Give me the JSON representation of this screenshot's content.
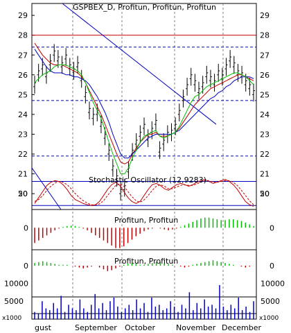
{
  "chart_data": [
    {
      "type": "line",
      "panel": "price",
      "title": "GSPBEX_D, Profitun, Profitun, Profitun",
      "ylim": [
        19.2,
        29.6
      ],
      "y_ticks": [
        "20",
        "21",
        "22",
        "23",
        "24",
        "25",
        "26",
        "27",
        "28",
        "29"
      ],
      "x_labels": [
        "gust",
        "September",
        "October",
        "November",
        "December"
      ],
      "colors": {
        "price": "#000000",
        "ma_short": "#00c000",
        "ma_long": "#0000c0",
        "ma_mid": "#c00000",
        "trend": "#0000c0",
        "level": "#c00000"
      },
      "resistance_level": 28.0,
      "dashed_levels": [
        27.4,
        24.7,
        21.9
      ],
      "series": [
        {
          "key": "close",
          "values": [
            25.5,
            26.1,
            26.4,
            26.0,
            26.6,
            27.1,
            26.8,
            26.5,
            26.9,
            26.4,
            26.2,
            26.5,
            25.8,
            25.0,
            24.2,
            23.9,
            24.1,
            23.5,
            22.9,
            22.1,
            21.3,
            20.8,
            20.1,
            20.3,
            21.2,
            22.1,
            22.6,
            23.0,
            23.4,
            22.8,
            23.2,
            23.6,
            22.2,
            22.6,
            23.0,
            23.1,
            23.4,
            24.1,
            24.8,
            25.4,
            25.9,
            25.6,
            25.2,
            25.5,
            26.0,
            25.8,
            25.6,
            26.1,
            25.9,
            26.4,
            26.8,
            26.5,
            26.1,
            26.0,
            25.6,
            25.4,
            25.1
          ]
        },
        {
          "key": "ma_short",
          "values": [
            25.6,
            25.8,
            26.0,
            26.1,
            26.2,
            26.4,
            26.5,
            26.5,
            26.5,
            26.4,
            26.3,
            26.2,
            26.0,
            25.6,
            25.1,
            24.6,
            24.2,
            23.8,
            23.2,
            22.6,
            22.0,
            21.5,
            21.0,
            21.0,
            21.3,
            21.8,
            22.2,
            22.6,
            22.9,
            23.0,
            23.1,
            23.2,
            22.9,
            22.8,
            22.9,
            23.0,
            23.1,
            23.4,
            23.8,
            24.2,
            24.6,
            24.9,
            25.0,
            25.2,
            25.4,
            25.5,
            25.6,
            25.7,
            25.8,
            25.9,
            26.0,
            26.1,
            26.1,
            26.0,
            25.9,
            25.7,
            25.5
          ]
        },
        {
          "key": "ma_long",
          "values": [
            27.3,
            27.0,
            26.7,
            26.4,
            26.2,
            26.1,
            26.1,
            26.1,
            26.0,
            26.0,
            25.9,
            25.9,
            25.8,
            25.7,
            25.5,
            25.2,
            24.9,
            24.5,
            24.1,
            23.6,
            23.0,
            22.5,
            22.0,
            21.8,
            21.8,
            22.0,
            22.2,
            22.4,
            22.6,
            22.8,
            22.9,
            23.0,
            23.0,
            23.0,
            23.0,
            23.0,
            23.1,
            23.2,
            23.4,
            23.6,
            23.8,
            24.0,
            24.2,
            24.4,
            24.6,
            24.8,
            24.9,
            25.1,
            25.2,
            25.4,
            25.5,
            25.7,
            25.8,
            25.9,
            25.9,
            25.9,
            25.8
          ]
        },
        {
          "key": "ma_mid",
          "values": [
            27.6,
            27.3,
            27.0,
            26.8,
            26.6,
            26.5,
            26.5,
            26.5,
            26.4,
            26.3,
            26.2,
            26.1,
            25.9,
            25.6,
            25.2,
            24.8,
            24.4,
            24.0,
            23.5,
            23.0,
            22.5,
            22.0,
            21.6,
            21.5,
            21.6,
            22.0,
            22.3,
            22.6,
            22.8,
            23.0,
            23.0,
            23.1,
            22.9,
            22.9,
            22.9,
            23.0,
            23.1,
            23.3,
            23.6,
            23.9,
            24.2,
            24.5,
            24.7,
            24.9,
            25.1,
            25.3,
            25.4,
            25.5,
            25.6,
            25.7,
            25.8,
            25.9,
            26.0,
            26.0,
            25.9,
            25.8,
            25.7
          ]
        }
      ]
    },
    {
      "type": "line",
      "panel": "stochastic",
      "title": "Stochastic Oscillator (12,9283)",
      "ylim": [
        10,
        100
      ],
      "y_ticks": [
        "50"
      ],
      "levels": [
        80,
        20
      ],
      "series": [
        {
          "key": "k",
          "values": [
            25,
            40,
            55,
            70,
            78,
            82,
            80,
            72,
            60,
            45,
            35,
            30,
            25,
            22,
            20,
            22,
            30,
            45,
            60,
            72,
            78,
            70,
            55,
            40,
            30,
            25,
            30,
            45,
            60,
            72,
            75,
            70,
            62,
            58,
            65,
            72,
            75,
            72,
            68,
            72,
            78,
            82,
            85,
            80,
            75,
            78,
            82,
            85,
            80,
            72,
            60,
            45,
            30,
            22,
            18
          ]
        },
        {
          "key": "d",
          "values": [
            30,
            35,
            45,
            58,
            68,
            76,
            80,
            78,
            72,
            62,
            50,
            40,
            32,
            26,
            22,
            21,
            24,
            32,
            45,
            58,
            70,
            74,
            68,
            55,
            42,
            32,
            28,
            34,
            45,
            58,
            68,
            72,
            68,
            62,
            62,
            66,
            70,
            72,
            70,
            70,
            74,
            78,
            82,
            82,
            78,
            78,
            80,
            82,
            82,
            78,
            70,
            58,
            45,
            32,
            22
          ]
        }
      ]
    },
    {
      "type": "bar",
      "panel": "histogram",
      "title": "Profitun, Profitun",
      "ylim": [
        -1.3,
        0.75
      ],
      "y_ticks": [
        "0"
      ],
      "colors": {
        "positive": "#00c000",
        "negative": "#c00000"
      },
      "values": [
        -0.9,
        -0.75,
        -0.6,
        -0.45,
        -0.3,
        -0.15,
        -0.05,
        0.05,
        0.1,
        0.12,
        0.1,
        0.05,
        -0.05,
        -0.15,
        -0.3,
        -0.45,
        -0.6,
        -0.75,
        -0.9,
        -1.05,
        -1.2,
        -1.2,
        -1.1,
        -0.9,
        -0.7,
        -0.5,
        -0.35,
        -0.2,
        -0.1,
        -0.05,
        0.0,
        -0.05,
        -0.1,
        -0.15,
        -0.1,
        -0.05,
        0.05,
        0.15,
        0.25,
        0.35,
        0.45,
        0.55,
        0.6,
        0.6,
        0.55,
        0.5,
        0.45,
        0.45,
        0.5,
        0.5,
        0.45,
        0.4,
        0.3,
        0.2,
        0.1
      ]
    },
    {
      "type": "bar",
      "panel": "histogram2",
      "title": "Profitun, Profitun",
      "ylim": [
        -0.5,
        0.5
      ],
      "y_ticks": [
        "0"
      ],
      "values": [
        0.15,
        0.2,
        0.25,
        0.2,
        0.15,
        0.1,
        0.05,
        0.05,
        0.05,
        0.0,
        -0.05,
        -0.1,
        -0.15,
        -0.1,
        -0.05,
        0.0,
        -0.1,
        -0.2,
        -0.3,
        -0.25,
        -0.15,
        -0.05,
        0.05,
        0.1,
        0.15,
        0.1,
        0.05,
        0.05,
        0.1,
        0.15,
        0.2,
        0.2,
        0.15,
        0.1,
        0.05,
        0.0,
        -0.05,
        -0.1,
        -0.05,
        0.05,
        0.1,
        0.15,
        0.2,
        0.25,
        0.3,
        0.25,
        0.2,
        0.15,
        0.1,
        0.05,
        0.0,
        -0.05,
        -0.1,
        -0.05,
        0.0
      ]
    },
    {
      "type": "bar",
      "panel": "volume",
      "ylim": [
        0,
        12000
      ],
      "y_ticks": [
        "5000",
        "10000"
      ],
      "unit_label": "x1000",
      "values": [
        2000,
        1500,
        5000,
        3000,
        2500,
        4500,
        3000,
        6500,
        2000,
        4000,
        3000,
        2500,
        5500,
        3000,
        2000,
        4000,
        7000,
        3000,
        4500,
        2500,
        5000,
        6000,
        3500,
        2000,
        3000,
        4000,
        2500,
        5500,
        3000,
        4500,
        2000,
        6000,
        3500,
        4000,
        2500,
        3000,
        5000,
        3500,
        2000,
        4000,
        3000,
        7500,
        2500,
        4500,
        3000,
        5500,
        3500,
        4000,
        3000,
        9500,
        3500,
        2500,
        4000,
        3000,
        6000,
        2500,
        3500,
        2000,
        5000
      ]
    }
  ]
}
